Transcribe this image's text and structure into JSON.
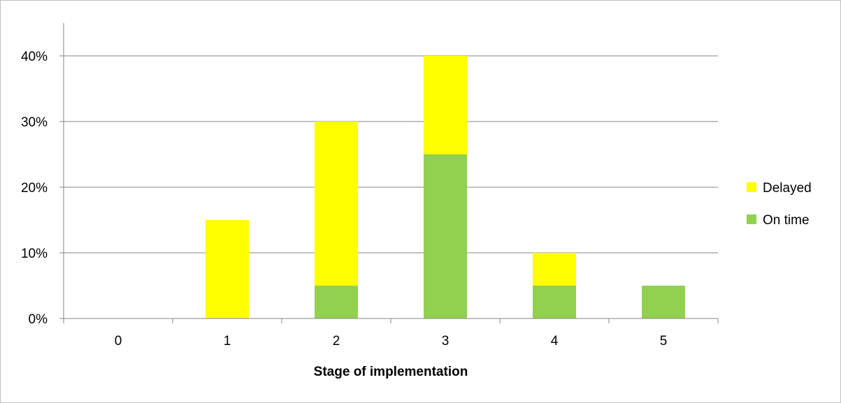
{
  "chart_data": {
    "type": "bar",
    "stacked": true,
    "categories": [
      "0",
      "1",
      "2",
      "3",
      "4",
      "5"
    ],
    "series": [
      {
        "name": "On time",
        "values": [
          0,
          0,
          5,
          25,
          5,
          5
        ],
        "color": "#92d050"
      },
      {
        "name": "Delayed",
        "values": [
          0,
          15,
          25,
          15,
          5,
          0
        ],
        "color": "#ffff00"
      }
    ],
    "xlabel": "Stage of implementation",
    "ylabel": "",
    "ylim": [
      0,
      40
    ],
    "yticks": [
      0,
      10,
      20,
      30,
      40
    ],
    "ytick_labels": [
      "0%",
      "10%",
      "20%",
      "30%",
      "40%"
    ],
    "grid": true,
    "legend": {
      "position": "right",
      "items": [
        {
          "label": "Delayed",
          "color": "#ffff00"
        },
        {
          "label": "On time",
          "color": "#92d050"
        }
      ]
    }
  }
}
